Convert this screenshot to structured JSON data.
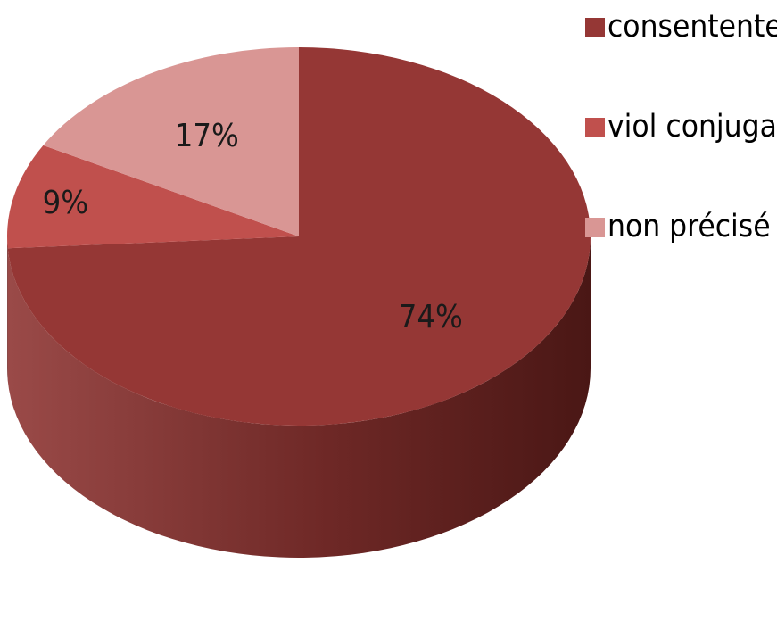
{
  "chart_data": {
    "type": "pie",
    "title": "",
    "categories": [
      "consentente",
      "viol conjugal",
      "non précisé"
    ],
    "values": [
      74,
      9,
      17
    ],
    "data_labels": [
      "74%",
      "9%",
      "17%"
    ],
    "colors": [
      "#953735",
      "#c0504d",
      "#d99694"
    ],
    "side_colors": [
      "#632523",
      "#7f2f2d",
      "#a67675"
    ],
    "style": "3d",
    "legend": {
      "position": "top-right",
      "items": [
        "consentente",
        "viol conjugal",
        "non précisé"
      ]
    }
  }
}
